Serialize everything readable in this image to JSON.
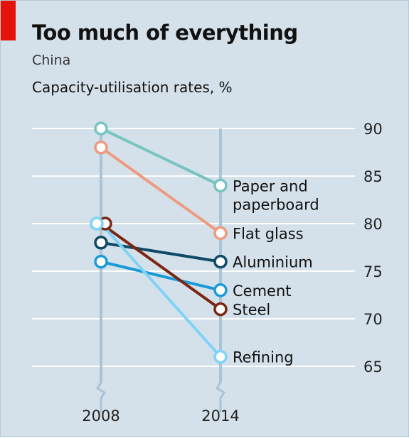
{
  "header": {
    "title": "Too much of everything",
    "subtitle": "China",
    "unit_label": "Capacity-utilisation rates, %"
  },
  "colors": {
    "background": "#d4e1ea",
    "gridline": "#ffffff",
    "accent_red": "#e3120b",
    "year_axis": "#a8c4d6"
  },
  "chart_data": {
    "type": "line",
    "title": "Too much of everything",
    "subtitle": "China",
    "ylabel": "Capacity-utilisation rates, %",
    "x": [
      "2008",
      "2014"
    ],
    "ylim": [
      62.5,
      92.5
    ],
    "y_ticks": [
      "65",
      "70",
      "75",
      "80",
      "85",
      "90"
    ],
    "axis_break": true,
    "series": [
      {
        "name": "Paper and paperboard",
        "label_lines": [
          "Paper and",
          "paperboard"
        ],
        "color": "#76c4c1",
        "values": [
          90,
          84
        ]
      },
      {
        "name": "Flat glass",
        "label_lines": [
          "Flat glass"
        ],
        "color": "#ef9a7e",
        "values": [
          88,
          79
        ]
      },
      {
        "name": "Aluminium",
        "label_lines": [
          "Aluminium"
        ],
        "color": "#0e4a66",
        "values": [
          78,
          76
        ]
      },
      {
        "name": "Cement",
        "label_lines": [
          "Cement"
        ],
        "color": "#1a9bd7",
        "values": [
          76,
          73
        ]
      },
      {
        "name": "Steel",
        "label_lines": [
          "Steel"
        ],
        "color": "#7a2613",
        "values": [
          80,
          71
        ]
      },
      {
        "name": "Refining",
        "label_lines": [
          "Refining"
        ],
        "color": "#7fd3f7",
        "values": [
          80,
          66
        ]
      }
    ]
  }
}
